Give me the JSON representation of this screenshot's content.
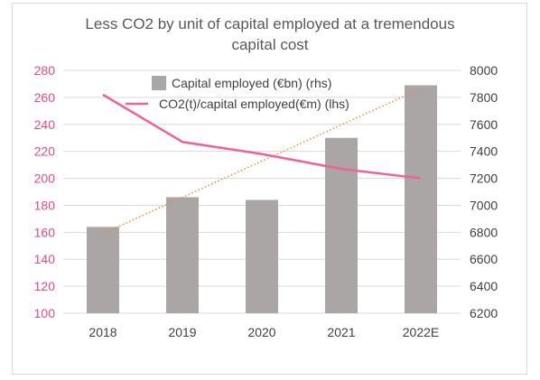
{
  "chart_data": {
    "type": "bar",
    "title_lines": [
      "Less CO2 by unit of capital employed at a tremendous",
      "capital cost"
    ],
    "categories": [
      "2018",
      "2019",
      "2020",
      "2021",
      "2022E"
    ],
    "series": [
      {
        "name": "Capital employed (€bn) (rhs)",
        "type": "bar",
        "axis": "right",
        "values": [
          6840,
          7060,
          7040,
          7500,
          7890
        ],
        "color": "#aba6a6"
      },
      {
        "name": "CO2(t)/capital employed(€m) (lhs)",
        "type": "line",
        "axis": "left",
        "values": [
          262,
          227,
          218,
          207,
          200
        ],
        "color": "#f0609a"
      }
    ],
    "trendline": {
      "series": "Capital employed (€bn) (rhs)",
      "axis": "right",
      "start": 6790,
      "end": 7865,
      "color": "#f28a30",
      "style": "dotted"
    },
    "left_axis": {
      "min": 100,
      "max": 280,
      "step": 20,
      "ticks": [
        "100",
        "120",
        "140",
        "160",
        "180",
        "200",
        "220",
        "240",
        "260",
        "280"
      ],
      "color": "#e8478b"
    },
    "right_axis": {
      "min": 6200,
      "max": 8000,
      "step": 200,
      "ticks": [
        "6200",
        "6400",
        "6600",
        "6800",
        "7000",
        "7200",
        "7400",
        "7600",
        "7800",
        "8000"
      ],
      "color": "#404040"
    },
    "grid": true,
    "legend_position": "top-center"
  }
}
